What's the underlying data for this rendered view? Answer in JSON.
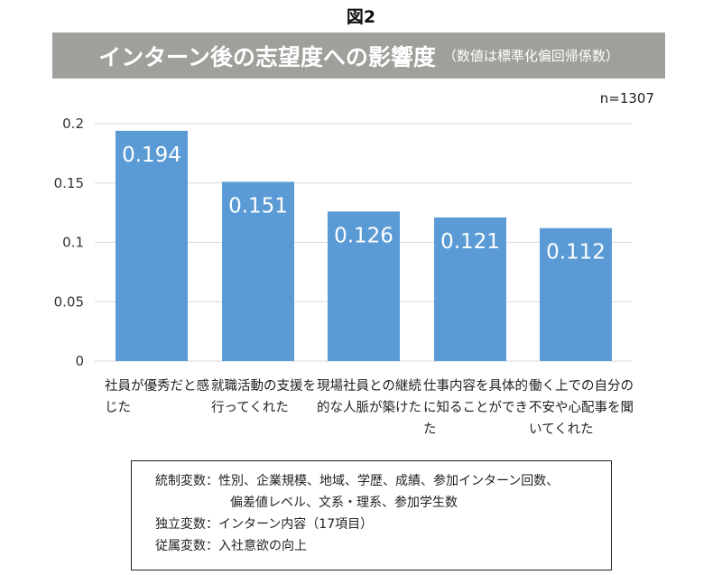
{
  "figure_label": "図2",
  "chart_data": {
    "type": "bar",
    "title": "インターン後の志望度への影響度",
    "subtitle": "（数値は標準化偏回帰係数）",
    "sample_size": "n=1307",
    "categories": [
      "社員が優秀だと感じた",
      "就職活動の支援を行ってくれた",
      "現場社員との継続的な人脈が築けた",
      "仕事内容を具体的に知ることができた",
      "働く上での自分の不安や心配事を聞いてくれた"
    ],
    "values": [
      0.194,
      0.151,
      0.126,
      0.121,
      0.112
    ],
    "value_labels": [
      "0.194",
      "0.151",
      "0.126",
      "0.121",
      "0.112"
    ],
    "y_ticks": [
      "0",
      "0.05",
      "0.1",
      "0.15",
      "0.2"
    ],
    "ylim": [
      0,
      0.2
    ],
    "grid": true,
    "bar_color": "#5b9bd5"
  },
  "note": {
    "control": "統制変数：性別、企業規模、地域、学歴、成績、参加インターン回数、",
    "control2": "偏差値レベル、文系・理系、参加学生数",
    "independent": "独立変数：インターン内容（17項目）",
    "dependent": "従属変数：入社意欲の向上"
  }
}
